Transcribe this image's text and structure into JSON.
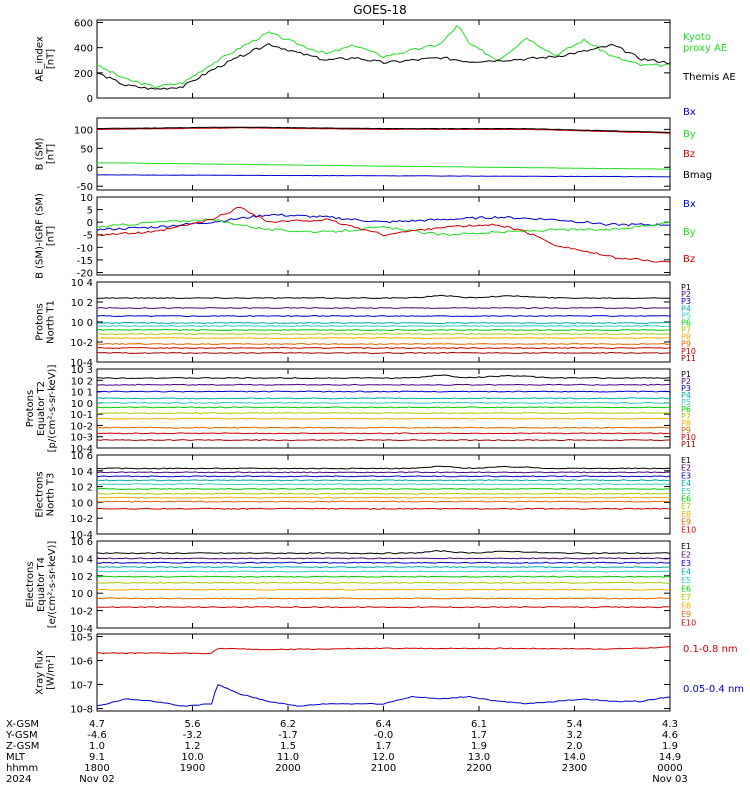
{
  "title": "GOES-18",
  "colors": {
    "axis": "#000000",
    "black": "#000000",
    "green": "#22dd22",
    "blue": "#0000cc",
    "red": "#cc0000",
    "darkred": "#a00000"
  },
  "chart_data": [
    {
      "type": "line",
      "panel": "AE index",
      "ylabel": [
        "AE_index",
        "[nT]"
      ],
      "ylim": [
        0,
        620
      ],
      "yticks": [
        {
          "v": 0,
          "t": "0"
        },
        {
          "v": 200,
          "t": "200"
        },
        {
          "v": 400,
          "t": "400"
        },
        {
          "v": 600,
          "t": "600"
        }
      ],
      "series": [
        {
          "name": "Kyoto\nproxy AE",
          "color": "#22dd22",
          "x": [
            0,
            0.05,
            0.1,
            0.15,
            0.2,
            0.25,
            0.3,
            0.35,
            0.4,
            0.45,
            0.5,
            0.55,
            0.6,
            0.63,
            0.65,
            0.7,
            0.75,
            0.8,
            0.85,
            0.9,
            0.95,
            1.0
          ],
          "y": [
            260,
            150,
            90,
            120,
            270,
            400,
            520,
            430,
            350,
            420,
            330,
            380,
            430,
            580,
            430,
            300,
            480,
            340,
            460,
            330,
            260,
            260
          ]
        },
        {
          "name": "Themis AE",
          "color": "#000000",
          "x": [
            0,
            0.05,
            0.1,
            0.15,
            0.2,
            0.25,
            0.3,
            0.35,
            0.4,
            0.45,
            0.5,
            0.55,
            0.6,
            0.65,
            0.7,
            0.75,
            0.8,
            0.85,
            0.9,
            0.95,
            1.0
          ],
          "y": [
            200,
            100,
            70,
            90,
            220,
            330,
            430,
            360,
            300,
            320,
            280,
            300,
            320,
            290,
            300,
            310,
            330,
            370,
            420,
            310,
            280
          ]
        }
      ]
    },
    {
      "type": "line",
      "panel": "B (SM)",
      "ylabel": [
        "B (SM)",
        "[nT]"
      ],
      "ylim": [
        -60,
        130
      ],
      "yticks": [
        {
          "v": -50,
          "t": "-50"
        },
        {
          "v": 0,
          "t": "0"
        },
        {
          "v": 50,
          "t": "50"
        },
        {
          "v": 100,
          "t": "100"
        }
      ],
      "series": [
        {
          "name": "Bx",
          "color": "#0000cc",
          "x": [
            0,
            1
          ],
          "y": [
            -20,
            -25
          ]
        },
        {
          "name": "By",
          "color": "#22dd22",
          "x": [
            0,
            0.5,
            1
          ],
          "y": [
            12,
            3,
            -5
          ]
        },
        {
          "name": "Bz",
          "color": "#cc0000",
          "x": [
            0,
            0.25,
            0.5,
            0.75,
            1
          ],
          "y": [
            100,
            104,
            100,
            100,
            90
          ]
        },
        {
          "name": "Bmag",
          "color": "#000000",
          "x": [
            0,
            0.25,
            0.5,
            0.75,
            1
          ],
          "y": [
            102,
            106,
            102,
            102,
            92
          ]
        }
      ]
    },
    {
      "type": "line",
      "panel": "B (SM)-IGRF (SM)",
      "ylabel": [
        "B (SM)-IGRF (SM)",
        "[nT]"
      ],
      "ylim": [
        -21,
        10
      ],
      "yticks": [
        {
          "v": -20,
          "t": "-20"
        },
        {
          "v": -15,
          "t": "-15"
        },
        {
          "v": -10,
          "t": "-10"
        },
        {
          "v": -5,
          "t": "-5"
        },
        {
          "v": 0,
          "t": "0"
        },
        {
          "v": 5,
          "t": "5"
        },
        {
          "v": 10,
          "t": "10"
        }
      ],
      "series": [
        {
          "name": "Bx",
          "color": "#0000cc",
          "x": [
            0,
            0.1,
            0.2,
            0.3,
            0.4,
            0.5,
            0.6,
            0.7,
            0.8,
            0.9,
            1.0
          ],
          "y": [
            -3,
            -2,
            0,
            3,
            2,
            0,
            1,
            2,
            1,
            -1,
            -1
          ]
        },
        {
          "name": "By",
          "color": "#22dd22",
          "x": [
            0,
            0.1,
            0.2,
            0.3,
            0.4,
            0.5,
            0.6,
            0.7,
            0.8,
            0.9,
            1.0
          ],
          "y": [
            -2,
            0,
            1,
            -3,
            -4,
            -2,
            -5,
            -4,
            -3,
            -3,
            0
          ]
        },
        {
          "name": "Bz",
          "color": "#cc0000",
          "x": [
            0,
            0.1,
            0.2,
            0.25,
            0.3,
            0.4,
            0.5,
            0.6,
            0.7,
            0.75,
            0.8,
            0.9,
            1.0
          ],
          "y": [
            -5,
            -4,
            1,
            6,
            0,
            1,
            -5,
            -2,
            -1,
            -4,
            -9,
            -14,
            -16
          ]
        }
      ]
    },
    {
      "type": "line",
      "panel": "Protons North T1",
      "ylabel": [
        "Protons",
        "North T1"
      ],
      "ylim": [
        -4,
        4
      ],
      "log": true,
      "yticks": [
        {
          "v": -4,
          "t": "10-4"
        },
        {
          "v": -2,
          "t": "10-2"
        },
        {
          "v": 0,
          "t": "10 0"
        },
        {
          "v": 2,
          "t": "10 2"
        },
        {
          "v": 4,
          "t": "10 4"
        }
      ],
      "series": [
        {
          "name": "P1",
          "color": "#000000",
          "y0": 2.4
        },
        {
          "name": "P2",
          "color": "#4b0082",
          "y0": 1.4
        },
        {
          "name": "P3",
          "color": "#0000cc",
          "y0": 0.6
        },
        {
          "name": "P4",
          "color": "#00aaaa",
          "y0": -0.1
        },
        {
          "name": "P5",
          "color": "#33cccc",
          "y0": -0.4
        },
        {
          "name": "P6",
          "color": "#00cc00",
          "y0": -0.8
        },
        {
          "name": "P7",
          "color": "#aacc00",
          "y0": -1.2
        },
        {
          "name": "P8",
          "color": "#ffaa00",
          "y0": -1.6
        },
        {
          "name": "P9",
          "color": "#dd6600",
          "y0": -2.2
        },
        {
          "name": "P10",
          "color": "#cc0000",
          "y0": -2.6
        },
        {
          "name": "P11",
          "color": "#a00000",
          "y0": -3.1
        }
      ]
    },
    {
      "type": "line",
      "panel": "Protons Equator T2",
      "ylabel": [
        "Protons",
        "Equator T2",
        "[p/(cm²-s-sr-keV)]"
      ],
      "ylim": [
        -4,
        3
      ],
      "log": true,
      "yticks": [
        {
          "v": -4,
          "t": "10-4"
        },
        {
          "v": -3,
          "t": "10-3"
        },
        {
          "v": -2,
          "t": "10-2"
        },
        {
          "v": -1,
          "t": "10-1"
        },
        {
          "v": 0,
          "t": "10 0"
        },
        {
          "v": 1,
          "t": "10 1"
        },
        {
          "v": 2,
          "t": "10 2"
        },
        {
          "v": 3,
          "t": "10 3"
        }
      ],
      "series": [
        {
          "name": "P1",
          "color": "#000000",
          "y0": 2.2
        },
        {
          "name": "P2",
          "color": "#4b0082",
          "y0": 1.6
        },
        {
          "name": "P3",
          "color": "#0000cc",
          "y0": 1.0
        },
        {
          "name": "P4",
          "color": "#00aaaa",
          "y0": 0.4
        },
        {
          "name": "P5",
          "color": "#33cccc",
          "y0": 0.0
        },
        {
          "name": "P6",
          "color": "#00cc00",
          "y0": -0.4
        },
        {
          "name": "P7",
          "color": "#aacc00",
          "y0": -0.9
        },
        {
          "name": "P8",
          "color": "#ffaa00",
          "y0": -1.4
        },
        {
          "name": "P9",
          "color": "#dd6600",
          "y0": -2.2
        },
        {
          "name": "P10",
          "color": "#cc0000",
          "y0": -2.7
        },
        {
          "name": "P11",
          "color": "#a00000",
          "y0": -3.3
        }
      ]
    },
    {
      "type": "line",
      "panel": "Electrons North T3",
      "ylabel": [
        "Electrons",
        "North T3"
      ],
      "ylim": [
        -4,
        6
      ],
      "log": true,
      "yticks": [
        {
          "v": -4,
          "t": "10-4"
        },
        {
          "v": -2,
          "t": "10-2"
        },
        {
          "v": 0,
          "t": "10 0"
        },
        {
          "v": 2,
          "t": "10 2"
        },
        {
          "v": 4,
          "t": "10 4"
        },
        {
          "v": 6,
          "t": "10 6"
        }
      ],
      "series": [
        {
          "name": "E1",
          "color": "#000000",
          "y0": 4.3
        },
        {
          "name": "E2",
          "color": "#4b0082",
          "y0": 3.8
        },
        {
          "name": "E3",
          "color": "#0000cc",
          "y0": 3.3
        },
        {
          "name": "E4",
          "color": "#00aaaa",
          "y0": 2.8
        },
        {
          "name": "E5",
          "color": "#33cccc",
          "y0": 2.3
        },
        {
          "name": "E6",
          "color": "#00cc00",
          "y0": 1.7
        },
        {
          "name": "E7",
          "color": "#aacc00",
          "y0": 1.1
        },
        {
          "name": "E8",
          "color": "#ffaa00",
          "y0": 0.6
        },
        {
          "name": "E9",
          "color": "#dd6600",
          "y0": 0.1
        },
        {
          "name": "E10",
          "color": "#cc0000",
          "y0": -0.8
        }
      ]
    },
    {
      "type": "line",
      "panel": "Electrons Equator T4",
      "ylabel": [
        "Electrons",
        "Equator T4",
        "[e/(cm²-s-sr-keV)]"
      ],
      "ylim": [
        -4,
        6
      ],
      "log": true,
      "yticks": [
        {
          "v": -4,
          "t": "10-4"
        },
        {
          "v": -2,
          "t": "10-2"
        },
        {
          "v": 0,
          "t": "10 0"
        },
        {
          "v": 2,
          "t": "10 2"
        },
        {
          "v": 4,
          "t": "10 4"
        },
        {
          "v": 6,
          "t": "10 6"
        }
      ],
      "series": [
        {
          "name": "E1",
          "color": "#000000",
          "y0": 4.6
        },
        {
          "name": "E2",
          "color": "#4b0082",
          "y0": 4.0
        },
        {
          "name": "E3",
          "color": "#0000cc",
          "y0": 3.5
        },
        {
          "name": "E4",
          "color": "#00aaaa",
          "y0": 3.0
        },
        {
          "name": "E5",
          "color": "#33cccc",
          "y0": 2.5
        },
        {
          "name": "E6",
          "color": "#00cc00",
          "y0": 1.9
        },
        {
          "name": "E7",
          "color": "#aacc00",
          "y0": 1.2
        },
        {
          "name": "E8",
          "color": "#ffaa00",
          "y0": 0.4
        },
        {
          "name": "E9",
          "color": "#dd6600",
          "y0": -0.6
        },
        {
          "name": "E10",
          "color": "#cc0000",
          "y0": -1.6
        }
      ]
    },
    {
      "type": "line",
      "panel": "Xray flux",
      "ylabel": [
        "Xray flux",
        "[W/m²]"
      ],
      "ylim": [
        -8.1,
        -4.9
      ],
      "log": true,
      "yticks": [
        {
          "v": -8,
          "t": "10-8"
        },
        {
          "v": -7,
          "t": "10-7"
        },
        {
          "v": -6,
          "t": "10-6"
        },
        {
          "v": -5,
          "t": "10-5"
        }
      ],
      "series": [
        {
          "name": "0.1-0.8 nm",
          "color": "#cc0000",
          "x": [
            0,
            0.2,
            0.21,
            0.3,
            0.5,
            0.7,
            0.9,
            1.0
          ],
          "y": [
            -5.7,
            -5.7,
            -5.5,
            -5.55,
            -5.5,
            -5.5,
            -5.52,
            -5.45
          ]
        },
        {
          "name": "0.05-0.4 nm",
          "color": "#0000cc",
          "x": [
            0,
            0.05,
            0.1,
            0.15,
            0.2,
            0.21,
            0.25,
            0.3,
            0.35,
            0.4,
            0.5,
            0.55,
            0.6,
            0.65,
            0.7,
            0.75,
            0.8,
            0.85,
            0.9,
            0.95,
            1.0
          ],
          "y": [
            -7.9,
            -7.6,
            -7.7,
            -7.9,
            -7.8,
            -7.0,
            -7.4,
            -7.7,
            -7.9,
            -7.8,
            -7.8,
            -7.5,
            -7.6,
            -7.5,
            -7.7,
            -7.8,
            -7.7,
            -7.6,
            -7.7,
            -7.7,
            -7.5
          ]
        }
      ]
    }
  ],
  "ephemeris": {
    "labels": [
      "X-GSM",
      "Y-GSM",
      "Z-GSM",
      "MLT",
      "hhmm",
      "2024"
    ],
    "columns": [
      {
        "x": "4.7",
        "y": "-4.6",
        "z": "1.0",
        "mlt": "9.1",
        "hhmm": "1800",
        "date": "Nov 02"
      },
      {
        "x": "5.6",
        "y": "-3.2",
        "z": "1.2",
        "mlt": "10.0",
        "hhmm": "1900",
        "date": ""
      },
      {
        "x": "6.2",
        "y": "-1.7",
        "z": "1.5",
        "mlt": "11.0",
        "hhmm": "2000",
        "date": ""
      },
      {
        "x": "6.4",
        "y": "-0.0",
        "z": "1.7",
        "mlt": "12.0",
        "hhmm": "2100",
        "date": ""
      },
      {
        "x": "6.1",
        "y": "1.7",
        "z": "1.9",
        "mlt": "13.0",
        "hhmm": "2200",
        "date": ""
      },
      {
        "x": "5.4",
        "y": "3.2",
        "z": "2.0",
        "mlt": "14.0",
        "hhmm": "2300",
        "date": ""
      },
      {
        "x": "4.3",
        "y": "4.6",
        "z": "1.9",
        "mlt": "14.9",
        "hhmm": "0000",
        "date": "Nov 03"
      }
    ]
  }
}
